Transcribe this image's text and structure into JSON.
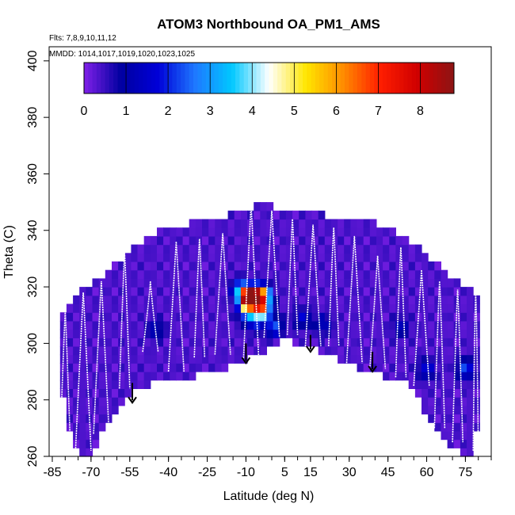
{
  "chart_data": {
    "type": "heatmap",
    "title": "ATOM3 Northbound OA_PM1_AMS",
    "flights_label": "Flts: 7,8,9,10,11,12",
    "dates_label": "MMDD: 1014,1017,1019,1020,1023,1025",
    "xlabel": "Latitude (deg N)",
    "ylabel": "Theta (C)",
    "xlim": [
      -85,
      85
    ],
    "ylim": [
      260,
      405
    ],
    "x_tick_labels": [
      "-85",
      "-70",
      "-55",
      "-40",
      "-25",
      "-10",
      "5",
      "15",
      "30",
      "45",
      "60",
      "75"
    ],
    "x_tick_values": [
      -85,
      -70,
      -55,
      -40,
      -25,
      -10,
      5,
      15,
      30,
      45,
      60,
      75
    ],
    "x_minor_step": 5,
    "y_ticks": [
      260,
      280,
      300,
      320,
      340,
      360,
      380,
      400
    ],
    "colorbar": {
      "range": [
        0,
        8.8
      ],
      "tick_labels": [
        "0",
        "1",
        "2",
        "3",
        "4",
        "5",
        "6",
        "7",
        "8"
      ],
      "stops": [
        "#8020e8",
        "#0000a0",
        "#0000d8",
        "#1e78ff",
        "#00c8ff",
        "#ffffff",
        "#ffe600",
        "#ff8c00",
        "#ff1e00",
        "#d00000",
        "#8c1414"
      ]
    },
    "background_value": 0.35,
    "domain_top": [
      [
        -82,
        310
      ],
      [
        -75,
        318
      ],
      [
        -65,
        325
      ],
      [
        -55,
        333
      ],
      [
        -45,
        340
      ],
      [
        -35,
        342
      ],
      [
        -25,
        344
      ],
      [
        -15,
        346
      ],
      [
        -5,
        349
      ],
      [
        5,
        348
      ],
      [
        15,
        346
      ],
      [
        25,
        345
      ],
      [
        35,
        344
      ],
      [
        45,
        341
      ],
      [
        55,
        335
      ],
      [
        65,
        327
      ],
      [
        75,
        320
      ],
      [
        80,
        317
      ]
    ],
    "domain_bottom": [
      [
        -82,
        290
      ],
      [
        -80,
        277
      ],
      [
        -76,
        262
      ],
      [
        -70,
        260
      ],
      [
        -65,
        270
      ],
      [
        -55,
        282
      ],
      [
        -45,
        287
      ],
      [
        -35,
        287
      ],
      [
        -25,
        290
      ],
      [
        -15,
        292
      ],
      [
        -5,
        296
      ],
      [
        5,
        301
      ],
      [
        15,
        299
      ],
      [
        25,
        295
      ],
      [
        35,
        290
      ],
      [
        45,
        288
      ],
      [
        55,
        285
      ],
      [
        62,
        270
      ],
      [
        70,
        262
      ],
      [
        78,
        260
      ],
      [
        80,
        275
      ]
    ],
    "hotspots": [
      {
        "lat": -9,
        "theta": 316,
        "value": 7.8
      },
      {
        "lat": -6,
        "theta": 317,
        "value": 6.2
      },
      {
        "lat": -4,
        "theta": 312,
        "value": 5.5
      },
      {
        "lat": -3,
        "theta": 317,
        "value": 3.5
      },
      {
        "lat": -12,
        "theta": 319,
        "value": 3.0
      },
      {
        "lat": -10,
        "theta": 312,
        "value": 2.4
      },
      {
        "lat": -7,
        "theta": 308,
        "value": 1.6
      },
      {
        "lat": 1,
        "theta": 306,
        "value": 2.0
      },
      {
        "lat": 12,
        "theta": 309,
        "value": 1.2
      },
      {
        "lat": 20,
        "theta": 307,
        "value": 1.1
      },
      {
        "lat": -45,
        "theta": 305,
        "value": 1.0
      },
      {
        "lat": 75,
        "theta": 291,
        "value": 1.9
      },
      {
        "lat": 60,
        "theta": 291,
        "value": 1.4
      },
      {
        "lat": 50,
        "theta": 306,
        "value": 1.0
      }
    ],
    "profiles": [
      {
        "lat": -80,
        "top": 311,
        "bottom": 264,
        "drift": 2
      },
      {
        "lat": -73,
        "top": 318,
        "bottom": 262,
        "drift": 3
      },
      {
        "lat": -66,
        "top": 322,
        "bottom": 268,
        "drift": 3
      },
      {
        "lat": -57,
        "top": 332,
        "bottom": 284,
        "drift": 2
      },
      {
        "lat": -47,
        "top": 322,
        "bottom": 297,
        "drift": 3
      },
      {
        "lat": -37,
        "top": 336,
        "bottom": 290,
        "drift": 3
      },
      {
        "lat": -28,
        "top": 337,
        "bottom": 295,
        "drift": 2
      },
      {
        "lat": -19,
        "top": 339,
        "bottom": 296,
        "drift": 3
      },
      {
        "lat": -8,
        "top": 349,
        "bottom": 294,
        "drift": 3
      },
      {
        "lat": 0,
        "top": 347,
        "bottom": 302,
        "drift": 3
      },
      {
        "lat": 8,
        "top": 344,
        "bottom": 303,
        "drift": 2
      },
      {
        "lat": 16,
        "top": 342,
        "bottom": 299,
        "drift": 3
      },
      {
        "lat": 24,
        "top": 341,
        "bottom": 299,
        "drift": 2
      },
      {
        "lat": 32,
        "top": 338,
        "bottom": 293,
        "drift": 3
      },
      {
        "lat": 41,
        "top": 331,
        "bottom": 291,
        "drift": 3
      },
      {
        "lat": 50,
        "top": 334,
        "bottom": 288,
        "drift": 2
      },
      {
        "lat": 58,
        "top": 326,
        "bottom": 285,
        "drift": 3
      },
      {
        "lat": 65,
        "top": 322,
        "bottom": 270,
        "drift": 2
      },
      {
        "lat": 72,
        "top": 319,
        "bottom": 265,
        "drift": 2
      },
      {
        "lat": 79,
        "top": 317,
        "bottom": 262,
        "drift": 1
      }
    ],
    "tropopause_arrows": [
      {
        "lat": -54,
        "theta": 286,
        "theta_tip": 279
      },
      {
        "lat": -10,
        "theta": 300,
        "theta_tip": 293
      },
      {
        "lat": 15,
        "theta": 303,
        "theta_tip": 297
      },
      {
        "lat": 39,
        "theta": 297,
        "theta_tip": 290
      }
    ]
  }
}
